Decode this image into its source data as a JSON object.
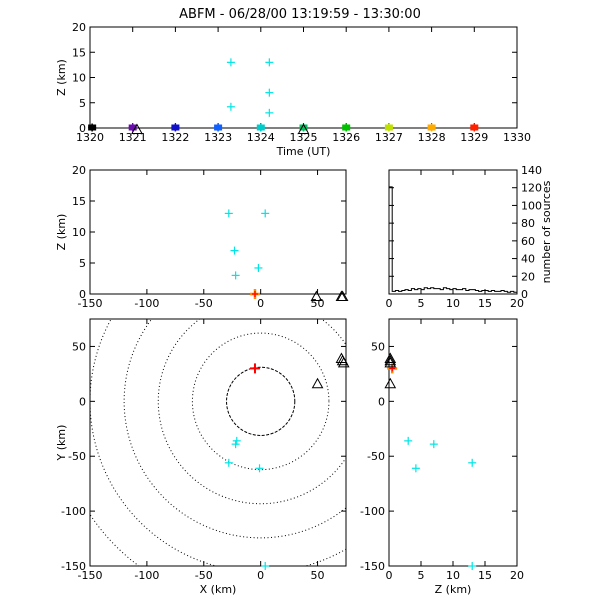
{
  "title": "ABFM - 06/28/00 13:19:59 - 13:30:00",
  "colors": {
    "cyan": "#00e5e5",
    "red": "#ff0000",
    "orange": "#ff8c00",
    "black": "#000000"
  },
  "chart_data": [
    {
      "panel": "time-height",
      "type": "scatter",
      "xlabel": "Time (UT)",
      "ylabel": "Z (km)",
      "xlim": [
        1320,
        1330
      ],
      "ylim": [
        0,
        20
      ],
      "xticks": [
        1320,
        1321,
        1322,
        1323,
        1324,
        1325,
        1326,
        1327,
        1328,
        1329,
        1330
      ],
      "yticks": [
        0,
        5,
        10,
        15,
        20
      ],
      "time_markers": [
        {
          "x": 1320.05,
          "color": "#000000"
        },
        {
          "x": 1321.0,
          "color": "#6a0dad"
        },
        {
          "x": 1322.0,
          "color": "#1010cc"
        },
        {
          "x": 1323.0,
          "color": "#1060ff"
        },
        {
          "x": 1324.0,
          "color": "#00cccc"
        },
        {
          "x": 1325.0,
          "color": "#00c060"
        },
        {
          "x": 1326.0,
          "color": "#00c000"
        },
        {
          "x": 1327.0,
          "color": "#c0e000"
        },
        {
          "x": 1328.0,
          "color": "#ffaa00"
        },
        {
          "x": 1329.0,
          "color": "#ff2000"
        }
      ],
      "sources": [
        {
          "x": 1323.3,
          "y": 13.0
        },
        {
          "x": 1323.3,
          "y": 4.2
        },
        {
          "x": 1324.2,
          "y": 13.0
        },
        {
          "x": 1324.2,
          "y": 7.0
        },
        {
          "x": 1324.2,
          "y": 3.0
        }
      ],
      "triangles": [
        {
          "x": 1321.1,
          "y": -0.3
        },
        {
          "x": 1325.0,
          "y": -0.3
        }
      ]
    },
    {
      "panel": "x-z",
      "type": "scatter",
      "xlabel": "",
      "ylabel": "Z (km)",
      "xlim": [
        -150,
        75
      ],
      "ylim": [
        0,
        20
      ],
      "xticks": [
        -150,
        -100,
        -50,
        0,
        50
      ],
      "yticks": [
        0,
        5,
        10,
        15,
        20
      ],
      "sources": [
        {
          "x": -28,
          "y": 13.0
        },
        {
          "x": 4,
          "y": 13.0
        },
        {
          "x": -23,
          "y": 7.0
        },
        {
          "x": -22,
          "y": 3.0
        },
        {
          "x": -2,
          "y": 4.2
        }
      ],
      "red_markers": [
        {
          "x": -5,
          "y": 0
        }
      ],
      "triangles": [
        {
          "x": 49,
          "y": -0.4
        },
        {
          "x": 71,
          "y": -0.4
        },
        {
          "x": 72,
          "y": -0.4
        }
      ]
    },
    {
      "panel": "histogram",
      "type": "bar",
      "xlabel": "",
      "ylabel": "number of sources",
      "xlim": [
        0,
        20
      ],
      "ylim": [
        0,
        140
      ],
      "xticks": [
        0,
        5,
        10,
        15,
        20
      ],
      "yticks": [
        0,
        20,
        40,
        60,
        80,
        100,
        120,
        140
      ],
      "bin_width": 0.5,
      "values": [
        121,
        3,
        4,
        3,
        4,
        5,
        4,
        6,
        5,
        6,
        5,
        7,
        6,
        7,
        6,
        6,
        5,
        7,
        6,
        5,
        6,
        5,
        5,
        6,
        4,
        5,
        5,
        4,
        3,
        4,
        4,
        3,
        4,
        3,
        3,
        4,
        3,
        2,
        3,
        2
      ]
    },
    {
      "panel": "plan-view",
      "type": "scatter",
      "xlabel": "X (km)",
      "ylabel": "Y (km)",
      "xlim": [
        -150,
        75
      ],
      "ylim": [
        -150,
        75
      ],
      "xticks": [
        -150,
        -100,
        -50,
        0,
        50
      ],
      "yticks": [
        -150,
        -100,
        -50,
        0,
        50
      ],
      "range_rings_km": [
        30,
        60,
        90,
        120,
        150,
        180
      ],
      "sources": [
        {
          "x": -21,
          "y": -36
        },
        {
          "x": -22,
          "y": -39
        },
        {
          "x": -28,
          "y": -56
        },
        {
          "x": -1,
          "y": -61
        },
        {
          "x": 4,
          "y": -150
        }
      ],
      "red_markers": [
        {
          "x": -5,
          "y": 30
        }
      ],
      "triangles": [
        {
          "x": 50,
          "y": 16
        },
        {
          "x": 71,
          "y": 39
        },
        {
          "x": 72,
          "y": 37
        },
        {
          "x": 73,
          "y": 35
        }
      ]
    },
    {
      "panel": "z-y",
      "type": "scatter",
      "xlabel": "Z (km)",
      "ylabel": "",
      "xlim": [
        0,
        20
      ],
      "ylim": [
        -150,
        75
      ],
      "xticks": [
        0,
        5,
        10,
        15,
        20
      ],
      "yticks": [
        -150,
        -100,
        -50,
        0,
        50
      ],
      "sources": [
        {
          "x": 3.0,
          "y": -36
        },
        {
          "x": 7.0,
          "y": -39
        },
        {
          "x": 13.0,
          "y": -56
        },
        {
          "x": 4.2,
          "y": -61
        },
        {
          "x": 13.0,
          "y": -150
        }
      ],
      "red_markers": [
        {
          "x": 0.5,
          "y": 30
        }
      ],
      "triangles": [
        {
          "x": 0.2,
          "y": 16
        },
        {
          "x": 0.2,
          "y": 39
        },
        {
          "x": 0.2,
          "y": 37
        },
        {
          "x": 0.2,
          "y": 35
        }
      ]
    }
  ]
}
